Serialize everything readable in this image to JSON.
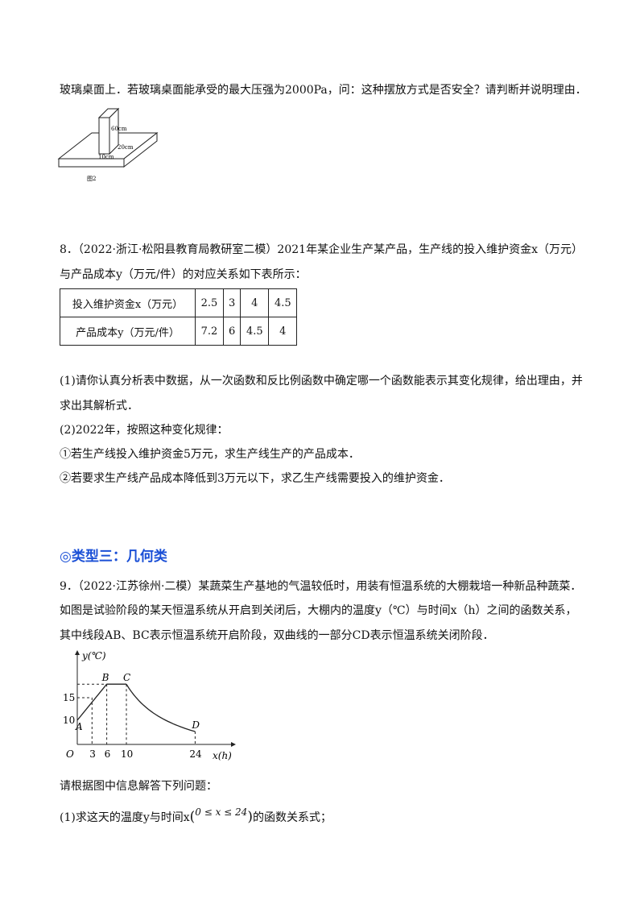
{
  "q7_tail": "玻璃桌面上．若玻璃桌面能承受的最大压强为2000Pa，问：这种摆放方式是否安全？请判断并说明理由．",
  "fig2": {
    "label_h": "60cm",
    "label_w": "20cm",
    "label_d": "10cm",
    "caption": "图2"
  },
  "q8": {
    "line1": "8．（2022·浙江·松阳县教育局教研室二模）2021年某企业生产某产品，生产线的投入维护资金x（万元）",
    "line2": "与产品成本y（万元/件）的对应关系如下表所示：",
    "table": {
      "rows": [
        {
          "header": "投入维护资金x（万元）",
          "cells": [
            "2.5",
            "3",
            "4",
            "4.5"
          ]
        },
        {
          "header": "产品成本y（万元/件）",
          "cells": [
            "7.2",
            "6",
            "4.5",
            "4"
          ]
        }
      ]
    },
    "sub1_line1": "(1)请你认真分析表中数据，从一次函数和反比例函数中确定哪一个函数能表示其变化规律，给出理由，并",
    "sub1_line2": "求出其解析式．",
    "sub2": "(2)2022年，按照这种变化规律：",
    "sub2_a": "①若生产线投入维护资金5万元，求生产线生产的产品成本．",
    "sub2_b": "②若要求生产线产品成本降低到3万元以下，求乙生产线需要投入的维护资金．"
  },
  "section_heading": "◎类型三：几何类",
  "q9": {
    "line1": "9．（2022·江苏徐州·二模）某蔬菜生产基地的气温较低时，用装有恒温系统的大棚栽培一种新品种蔬菜．",
    "line2": "如图是试验阶段的某天恒温系统从开启到关闭后，大棚内的温度y（℃）与时间x（h）之间的函数关系，",
    "line3": "其中线段AB、BC表示恒温系统开启阶段，双曲线的一部分CD表示恒温系统关闭阶段．",
    "after_graph": "请根据图中信息解答下列问题：",
    "sub1_prefix": "(1)求这天的温度y与时间x",
    "sub1_range": "0 ≤ x ≤ 24",
    "sub1_suffix": "的函数关系式；"
  },
  "chart_data": {
    "type": "line",
    "xlabel": "x(h)",
    "ylabel": "y(℃)",
    "x_ticks": [
      "3",
      "6",
      "10",
      "24"
    ],
    "y_ticks": [
      "10",
      "15"
    ],
    "origin_label": "O",
    "points": [
      {
        "name": "A",
        "x": 0,
        "y": 10
      },
      {
        "name": "B",
        "x": 6,
        "y": 18
      },
      {
        "name": "C",
        "x": 10,
        "y": 18
      },
      {
        "name": "D",
        "x": 24,
        "y": 7.5
      }
    ],
    "segments": [
      "AB",
      "BC",
      "CD(hyperbola y=180/x)"
    ]
  }
}
